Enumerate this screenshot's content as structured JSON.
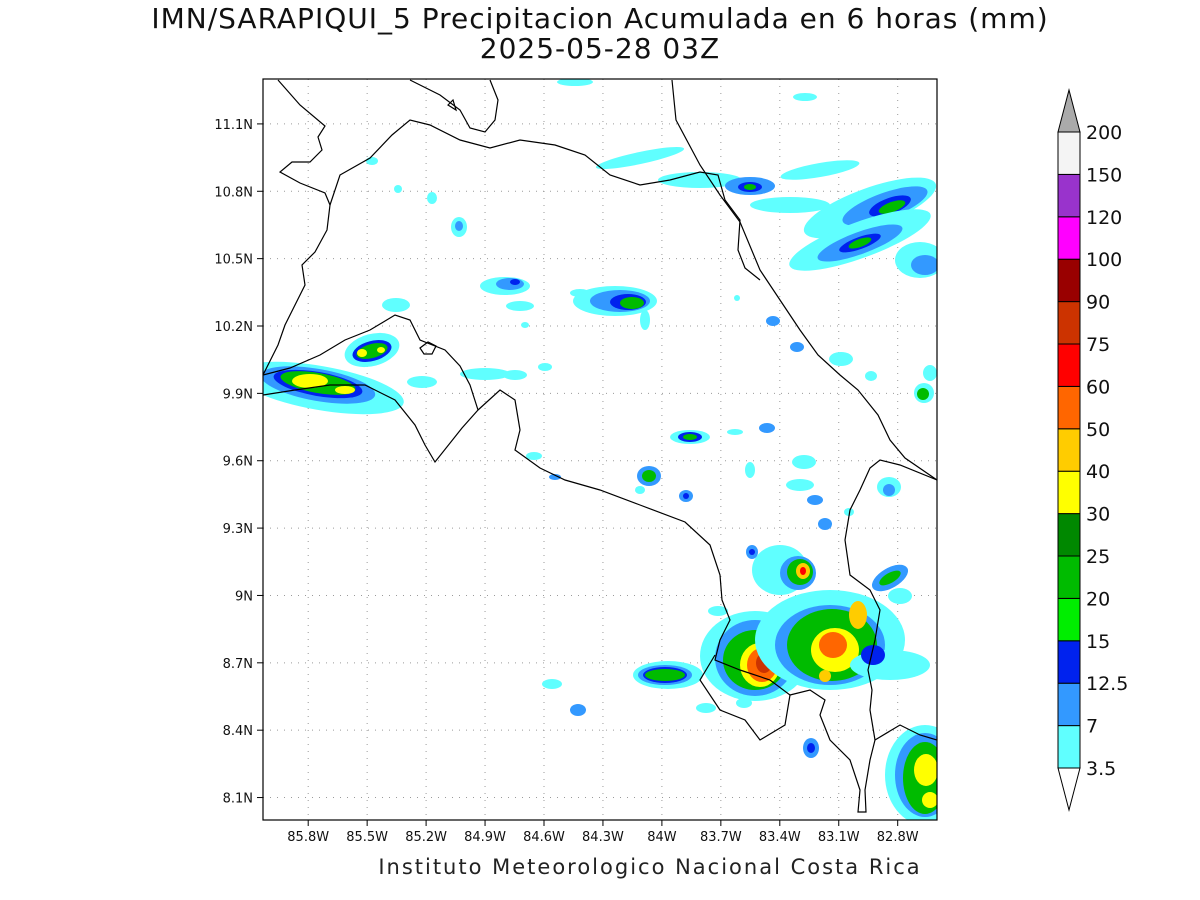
{
  "title": {
    "line1": "IMN/SARAPIQUI_5 Precipitacion Acumulada en 6 horas (mm)",
    "line2": "2025-05-28 03Z"
  },
  "footer": "Instituto Meteorologico Nacional Costa Rica",
  "map": {
    "lon_range": [
      -86.03,
      -82.6
    ],
    "lat_range": [
      8.0,
      11.3
    ],
    "lat_ticks": [
      "11.1N",
      "10.8N",
      "10.5N",
      "10.2N",
      "9.9N",
      "9.6N",
      "9.3N",
      "9N",
      "8.7N",
      "8.4N",
      "8.1N"
    ],
    "lat_tick_values": [
      11.1,
      10.8,
      10.5,
      10.2,
      9.9,
      9.6,
      9.3,
      9.0,
      8.7,
      8.4,
      8.1
    ],
    "lon_ticks": [
      "85.8W",
      "85.5W",
      "85.2W",
      "84.9W",
      "84.6W",
      "84.3W",
      "84W",
      "83.7W",
      "83.4W",
      "83.1W",
      "82.8W"
    ],
    "lon_tick_values": [
      -85.8,
      -85.5,
      -85.2,
      -84.9,
      -84.6,
      -84.3,
      -84.0,
      -83.7,
      -83.4,
      -83.1,
      -82.8
    ],
    "grid": true
  },
  "colorbar": {
    "levels": [
      "3.5",
      "7",
      "12.5",
      "15",
      "20",
      "25",
      "30",
      "40",
      "50",
      "60",
      "75",
      "90",
      "100",
      "120",
      "150",
      "200"
    ],
    "colors": [
      "#60ffff",
      "#3399ff",
      "#0022ee",
      "#00ee00",
      "#00bb00",
      "#008800",
      "#ffff00",
      "#ffcc00",
      "#ff6600",
      "#ff0000",
      "#cc3300",
      "#990000",
      "#ff00ff",
      "#9933cc",
      "#f4f4f4",
      "#aaaaaa"
    ]
  },
  "legend_colors": {
    "c35": "#60ffff",
    "c7": "#3399ff",
    "c125": "#0022ee",
    "c15": "#00ee00",
    "c20": "#00bb00",
    "c25": "#008800",
    "c30": "#ffff00",
    "c40": "#ffcc00",
    "c50": "#ff6600",
    "c60": "#ff0000",
    "c75": "#cc3300"
  }
}
